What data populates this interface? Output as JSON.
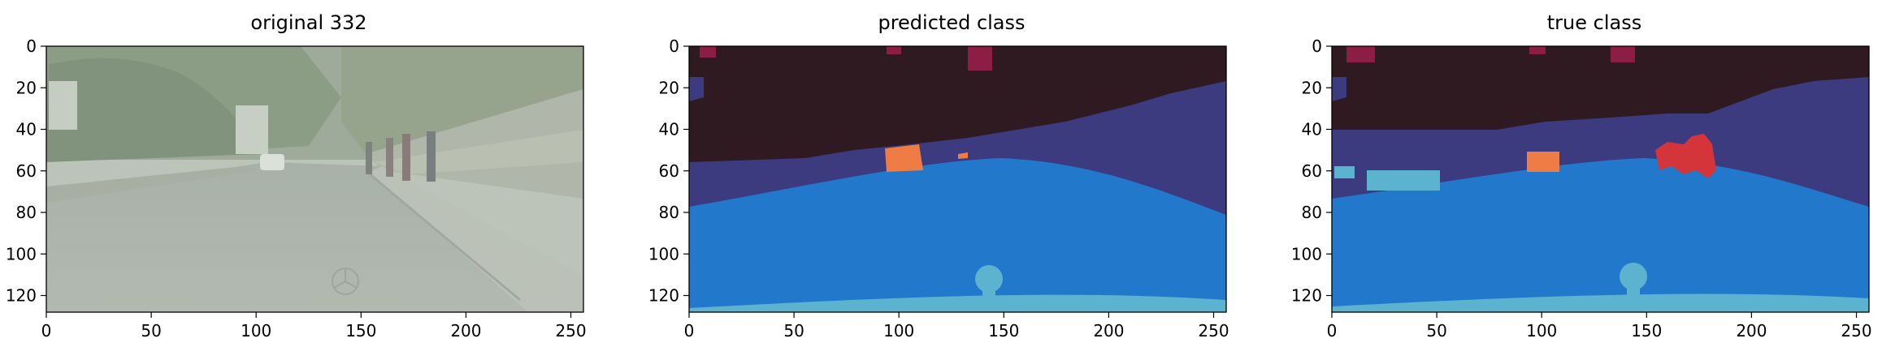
{
  "figure": {
    "panels": [
      {
        "title": "original 332"
      },
      {
        "title": "predicted class"
      },
      {
        "title": "true class"
      }
    ],
    "x_ticks": [
      "0",
      "50",
      "100",
      "150",
      "200",
      "250"
    ],
    "y_ticks": [
      "0",
      "20",
      "40",
      "60",
      "80",
      "100",
      "120"
    ],
    "x_range": [
      0,
      256
    ],
    "y_range": [
      0,
      128
    ],
    "colors": {
      "sky": "#2e1a20",
      "building": "#3d3b80",
      "road": "#2279cc",
      "car_hood": "#5cb3cf",
      "vehicle": "#ef7c45",
      "pedestrian": "#d3353b",
      "vegetation_hint": "#8c1e46"
    }
  }
}
